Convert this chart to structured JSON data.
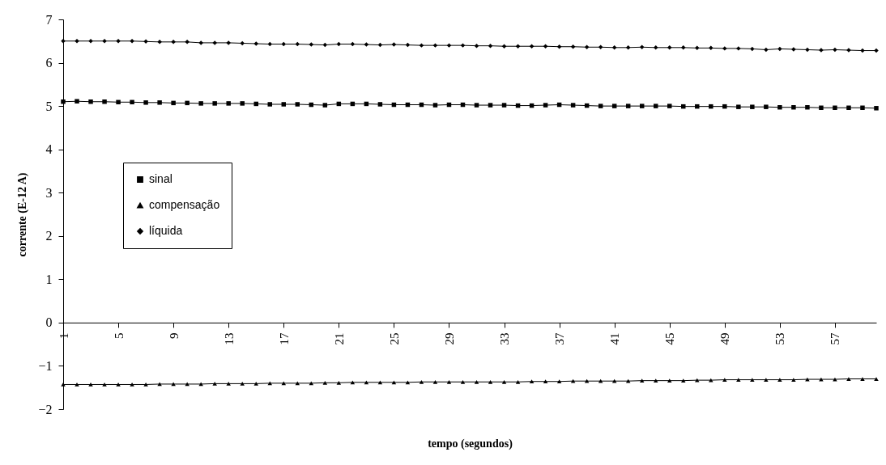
{
  "chart_data": {
    "type": "line",
    "xlabel": "tempo (segundos)",
    "ylabel": "corrente (E-12 A)",
    "categories": [
      "1",
      null,
      null,
      null,
      "5",
      null,
      null,
      null,
      "9",
      null,
      null,
      null,
      "13",
      null,
      null,
      null,
      "17",
      null,
      null,
      null,
      "21",
      null,
      null,
      null,
      "25",
      null,
      null,
      null,
      "29",
      null,
      null,
      null,
      "33",
      null,
      null,
      null,
      "37",
      null,
      null,
      null,
      "41",
      null,
      null,
      null,
      "45",
      null,
      null,
      null,
      "49",
      null,
      null,
      null,
      "53",
      null,
      null,
      null,
      "57",
      null,
      null,
      null
    ],
    "ylim": [
      -2,
      7
    ],
    "yticks": [
      -2,
      -1,
      0,
      1,
      2,
      3,
      4,
      5,
      6,
      7
    ],
    "legend": "left",
    "series": [
      {
        "name": "sinal",
        "color": "#000000",
        "marker": "square",
        "values": [
          5.1,
          5.11,
          5.1,
          5.1,
          5.09,
          5.09,
          5.08,
          5.08,
          5.07,
          5.07,
          5.06,
          5.06,
          5.06,
          5.06,
          5.05,
          5.04,
          5.04,
          5.04,
          5.03,
          5.02,
          5.05,
          5.05,
          5.05,
          5.04,
          5.03,
          5.03,
          5.03,
          5.02,
          5.03,
          5.03,
          5.02,
          5.02,
          5.02,
          5.01,
          5.01,
          5.02,
          5.03,
          5.02,
          5.01,
          5.0,
          5.0,
          5.0,
          5.0,
          5.0,
          5.0,
          4.99,
          4.99,
          4.99,
          4.99,
          4.98,
          4.98,
          4.98,
          4.97,
          4.97,
          4.97,
          4.96,
          4.96,
          4.96,
          4.96,
          4.95
        ]
      },
      {
        "name": "compensação",
        "color": "#000000",
        "marker": "triangle",
        "values": [
          -1.43,
          -1.43,
          -1.43,
          -1.43,
          -1.43,
          -1.43,
          -1.43,
          -1.42,
          -1.42,
          -1.42,
          -1.42,
          -1.41,
          -1.41,
          -1.41,
          -1.41,
          -1.4,
          -1.4,
          -1.4,
          -1.4,
          -1.39,
          -1.39,
          -1.38,
          -1.38,
          -1.38,
          -1.38,
          -1.38,
          -1.37,
          -1.37,
          -1.37,
          -1.37,
          -1.37,
          -1.37,
          -1.37,
          -1.37,
          -1.36,
          -1.36,
          -1.36,
          -1.35,
          -1.35,
          -1.35,
          -1.35,
          -1.35,
          -1.34,
          -1.34,
          -1.34,
          -1.34,
          -1.33,
          -1.33,
          -1.32,
          -1.32,
          -1.32,
          -1.32,
          -1.32,
          -1.32,
          -1.31,
          -1.31,
          -1.31,
          -1.3,
          -1.3,
          -1.3
        ]
      },
      {
        "name": "líquida",
        "color": "#000000",
        "marker": "diamond",
        "values": [
          6.5,
          6.5,
          6.5,
          6.5,
          6.5,
          6.5,
          6.49,
          6.48,
          6.48,
          6.48,
          6.46,
          6.46,
          6.46,
          6.45,
          6.44,
          6.43,
          6.43,
          6.43,
          6.42,
          6.41,
          6.43,
          6.43,
          6.42,
          6.41,
          6.42,
          6.41,
          6.4,
          6.4,
          6.4,
          6.4,
          6.39,
          6.39,
          6.38,
          6.38,
          6.38,
          6.38,
          6.37,
          6.37,
          6.36,
          6.36,
          6.35,
          6.35,
          6.36,
          6.35,
          6.35,
          6.35,
          6.34,
          6.34,
          6.33,
          6.33,
          6.32,
          6.3,
          6.32,
          6.31,
          6.3,
          6.29,
          6.3,
          6.29,
          6.28,
          6.28
        ]
      }
    ]
  }
}
